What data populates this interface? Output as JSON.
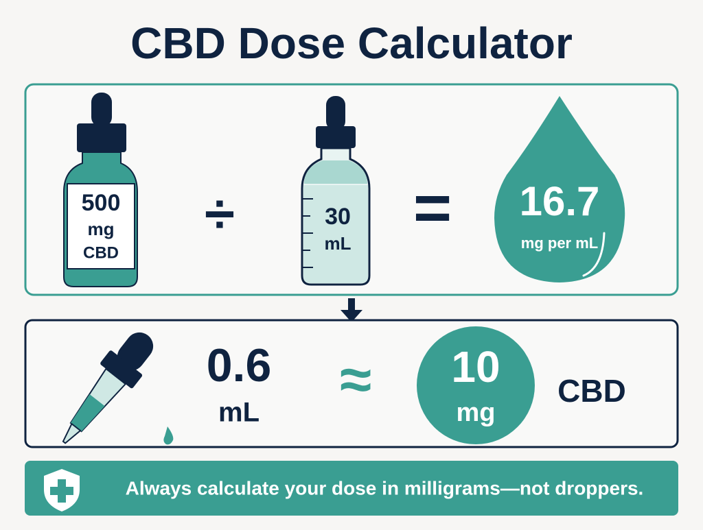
{
  "title": "CBD Dose Calculator",
  "concentration": {
    "bottle": {
      "amount": "500",
      "unit": "mg",
      "label": "CBD"
    },
    "divide": "÷",
    "volume": {
      "amount": "30",
      "unit": "mL"
    },
    "equals": "=",
    "result": {
      "amount": "16.7",
      "unit": "mg per mL"
    }
  },
  "dose": {
    "volume": {
      "amount": "0.6",
      "unit": "mL"
    },
    "approx": "≈",
    "amount": {
      "amount": "10",
      "unit": "mg"
    },
    "label": "CBD"
  },
  "footer": "Always calculate your dose in milligrams—not droppers."
}
